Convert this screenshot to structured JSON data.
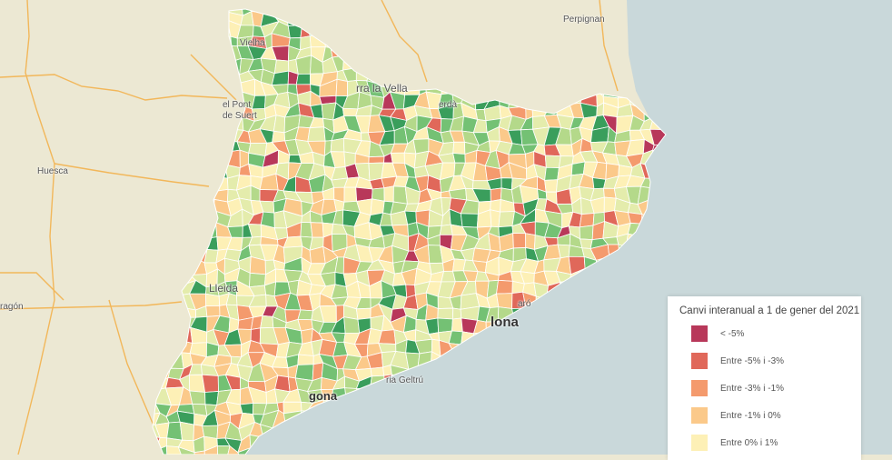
{
  "legend": {
    "title": "Canvi interanual a 1 de gener del 2021",
    "items": [
      {
        "label": "< -5%",
        "color": "#b8385a"
      },
      {
        "label": "Entre -5% i -3%",
        "color": "#e0685a"
      },
      {
        "label": "Entre -3% i -1%",
        "color": "#f49a6d"
      },
      {
        "label": "Entre -1% i 0%",
        "color": "#fbc98a"
      },
      {
        "label": "Entre 0% i 1%",
        "color": "#fdf0b6"
      }
    ]
  },
  "map_colors": {
    "land": "#ece8d3",
    "sea": "#c9d8da",
    "roads": "#f2b75a",
    "extra_classes": [
      "#e4ecac",
      "#b4d98a",
      "#74c174",
      "#3a9e5c"
    ]
  },
  "place_labels": {
    "perpignan": "Perpignan",
    "huesca": "Huesca",
    "aragon": "ragón",
    "vielha": "Vielha",
    "pont_de_suert": "el Pont de Suert",
    "andorra": "rra la Vella",
    "puigcerda": "erdà",
    "lleida": "Lleida",
    "barcelona": "lona",
    "tarragona": "gona",
    "geltru": "ria Geltrú",
    "mataro": "aró"
  }
}
